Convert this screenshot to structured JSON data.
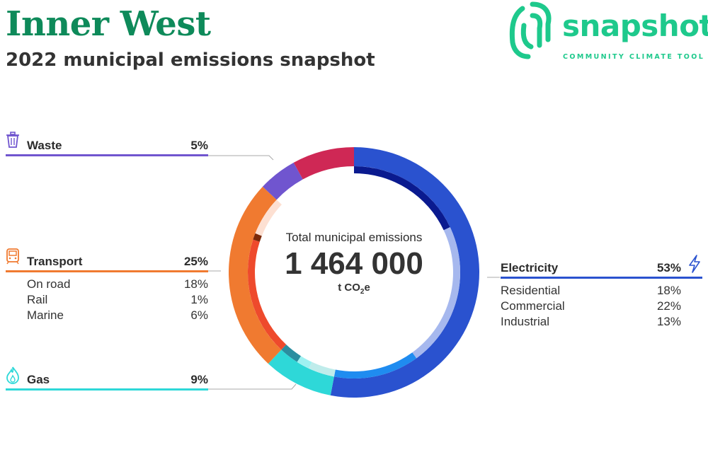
{
  "header": {
    "title": "Inner West",
    "subtitle": "2022 municipal emissions snapshot"
  },
  "logo": {
    "word": "snapshot",
    "tagline": "COMMUNITY CLIMATE TOOL",
    "color": "#1ec98c"
  },
  "center": {
    "label": "Total municipal emissions",
    "total": "1 464 000",
    "unit_prefix": "t CO",
    "unit_sub": "2",
    "unit_suffix": "e"
  },
  "chart_data": {
    "type": "pie",
    "title": "2022 municipal emissions snapshot",
    "total": 1464000,
    "categories": [
      {
        "name": "Electricity",
        "percent": "53%",
        "value": 53,
        "color": "#2a52cf",
        "icon": "lightning-icon",
        "subs": [
          {
            "name": "Residential",
            "percent": "18%",
            "value": 18,
            "color": "#0a1a8f"
          },
          {
            "name": "Commercial",
            "percent": "22%",
            "value": 22,
            "color": "#a6b8ee"
          },
          {
            "name": "Industrial",
            "percent": "13%",
            "value": 13,
            "color": "#1f8cf0"
          }
        ]
      },
      {
        "name": "Gas",
        "percent": "9%",
        "value": 9,
        "color": "#2ed8d8",
        "icon": "flame-icon",
        "subs": [
          {
            "name": "",
            "percent": "",
            "value": 4,
            "color": "#bfeceb"
          },
          {
            "name": "",
            "percent": "",
            "value": 2,
            "color": "#9ef1f1"
          },
          {
            "name": "",
            "percent": "",
            "value": 3,
            "color": "#2a8ea0"
          }
        ]
      },
      {
        "name": "Transport",
        "percent": "25%",
        "value": 25,
        "color": "#f07a30",
        "icon": "train-icon",
        "subs": [
          {
            "name": "On road",
            "percent": "18%",
            "value": 18,
            "color": "#ee4a2c"
          },
          {
            "name": "Rail",
            "percent": "1%",
            "value": 1,
            "color": "#7a2a0a"
          },
          {
            "name": "Marine",
            "percent": "6%",
            "value": 6,
            "color": "#fde0d2"
          }
        ]
      },
      {
        "name": "Waste",
        "percent": "5%",
        "value": 5,
        "color": "#7055cf",
        "icon": "trash-icon",
        "subs": []
      },
      {
        "name": "",
        "percent": "",
        "value": 8,
        "color": "#cf2855",
        "subs": []
      }
    ]
  }
}
